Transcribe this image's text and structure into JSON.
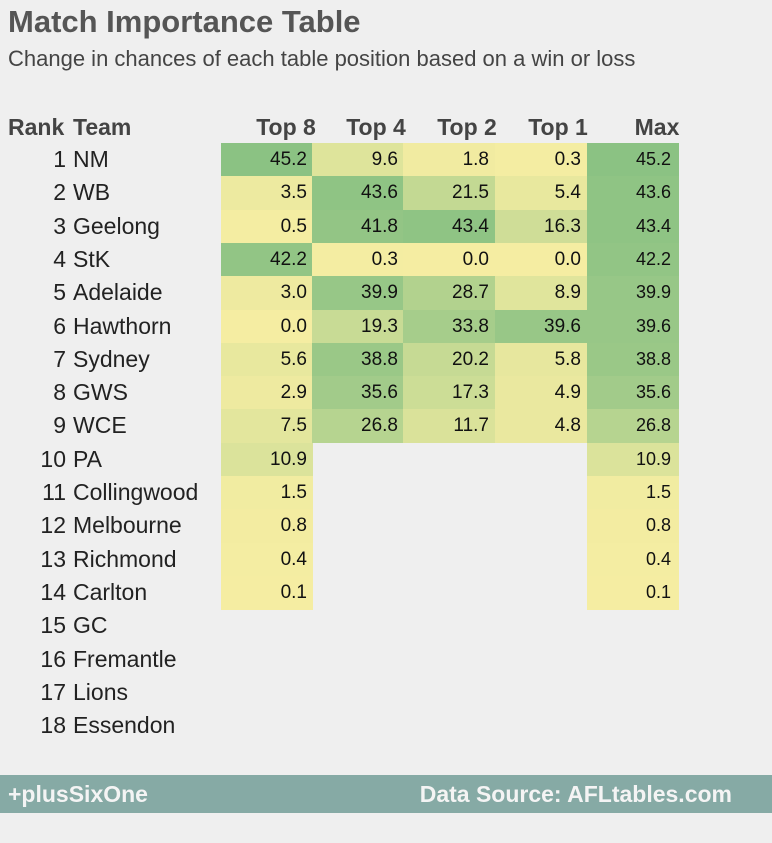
{
  "title": "Match Importance Table",
  "subtitle": "Change in chances of each table position based on a win or loss",
  "headers": {
    "rank": "Rank",
    "team": "Team",
    "top8": "Top 8",
    "top4": "Top 4",
    "top2": "Top 2",
    "top1": "Top 1",
    "max": "Max"
  },
  "footer": {
    "left": "+plusSixOne",
    "right": "Data Source: AFLtables.com"
  },
  "colors": {
    "low": "#f5eda2",
    "high": "#8bc283",
    "footer_bg": "#86aaa5",
    "background": "#efefef"
  },
  "chart_data": {
    "type": "table",
    "columns": [
      "Top 8",
      "Top 4",
      "Top 2",
      "Top 1",
      "Max"
    ],
    "rows": [
      {
        "rank": "1",
        "team": "NM",
        "values": [
          "45.2",
          "9.6",
          "1.8",
          "0.3",
          "45.2"
        ]
      },
      {
        "rank": "2",
        "team": "WB",
        "values": [
          "3.5",
          "43.6",
          "21.5",
          "5.4",
          "43.6"
        ]
      },
      {
        "rank": "3",
        "team": "Geelong",
        "values": [
          "0.5",
          "41.8",
          "43.4",
          "16.3",
          "43.4"
        ]
      },
      {
        "rank": "4",
        "team": "StK",
        "values": [
          "42.2",
          "0.3",
          "0.0",
          "0.0",
          "42.2"
        ]
      },
      {
        "rank": "5",
        "team": "Adelaide",
        "values": [
          "3.0",
          "39.9",
          "28.7",
          "8.9",
          "39.9"
        ]
      },
      {
        "rank": "6",
        "team": "Hawthorn",
        "values": [
          "0.0",
          "19.3",
          "33.8",
          "39.6",
          "39.6"
        ]
      },
      {
        "rank": "7",
        "team": "Sydney",
        "values": [
          "5.6",
          "38.8",
          "20.2",
          "5.8",
          "38.8"
        ]
      },
      {
        "rank": "8",
        "team": "GWS",
        "values": [
          "2.9",
          "35.6",
          "17.3",
          "4.9",
          "35.6"
        ]
      },
      {
        "rank": "9",
        "team": "WCE",
        "values": [
          "7.5",
          "26.8",
          "11.7",
          "4.8",
          "26.8"
        ]
      },
      {
        "rank": "10",
        "team": "PA",
        "values": [
          "10.9",
          null,
          null,
          null,
          "10.9"
        ]
      },
      {
        "rank": "11",
        "team": "Collingwood",
        "values": [
          "1.5",
          null,
          null,
          null,
          "1.5"
        ]
      },
      {
        "rank": "12",
        "team": "Melbourne",
        "values": [
          "0.8",
          null,
          null,
          null,
          "0.8"
        ]
      },
      {
        "rank": "13",
        "team": "Richmond",
        "values": [
          "0.4",
          null,
          null,
          null,
          "0.4"
        ]
      },
      {
        "rank": "14",
        "team": "Carlton",
        "values": [
          "0.1",
          null,
          null,
          null,
          "0.1"
        ]
      },
      {
        "rank": "15",
        "team": "GC",
        "values": [
          null,
          null,
          null,
          null,
          null
        ]
      },
      {
        "rank": "16",
        "team": "Fremantle",
        "values": [
          null,
          null,
          null,
          null,
          null
        ]
      },
      {
        "rank": "17",
        "team": "Lions",
        "values": [
          null,
          null,
          null,
          null,
          null
        ]
      },
      {
        "rank": "18",
        "team": "Essendon",
        "values": [
          null,
          null,
          null,
          null,
          null
        ]
      }
    ],
    "color_range": [
      0,
      45.2
    ]
  }
}
